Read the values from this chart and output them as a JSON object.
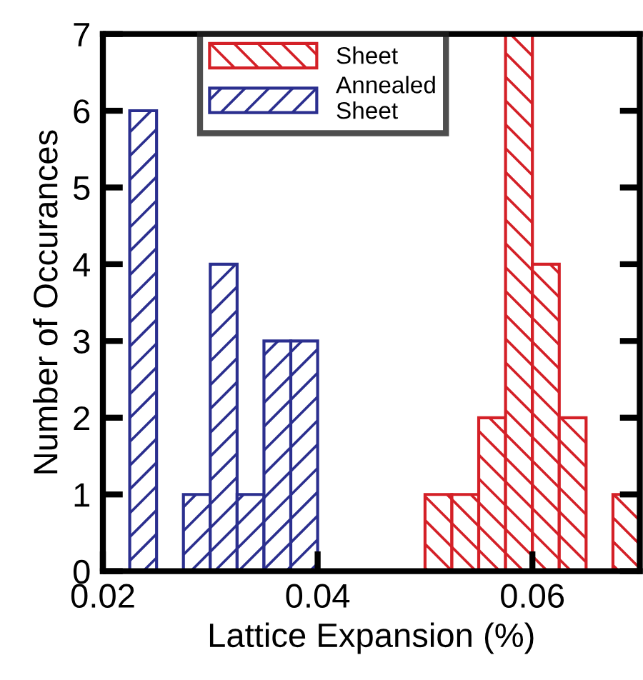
{
  "chart_data": {
    "type": "histogram",
    "xlabel": "Lattice Expansion (%)",
    "ylabel": "Number of Occurances",
    "bins": [
      0.0225,
      0.025,
      0.0275,
      0.03,
      0.0325,
      0.035,
      0.0375,
      0.04,
      0.0425,
      0.045,
      0.0475,
      0.05,
      0.0525,
      0.055,
      0.0575,
      0.06,
      0.0625,
      0.065,
      0.0675,
      0.07
    ],
    "series": [
      {
        "name": "Sheet",
        "color": "#d42027",
        "values": [
          null,
          null,
          null,
          null,
          null,
          null,
          null,
          null,
          null,
          null,
          null,
          1,
          1,
          2,
          7,
          4,
          2,
          0,
          1
        ]
      },
      {
        "name": "Annealed\nSheet",
        "color": "#2b2f8f",
        "values": [
          6,
          0,
          1,
          4,
          1,
          3,
          3,
          null,
          null,
          null,
          null,
          null,
          null,
          null,
          null,
          null,
          null,
          null,
          null
        ]
      }
    ],
    "xlim": [
      0.02,
      0.07
    ],
    "ylim": [
      0,
      7
    ],
    "xticks": [
      0.02,
      0.04,
      0.06
    ],
    "yticks": [
      0,
      1,
      2,
      3,
      4,
      5,
      6,
      7
    ],
    "grid": false,
    "legend": "top"
  }
}
